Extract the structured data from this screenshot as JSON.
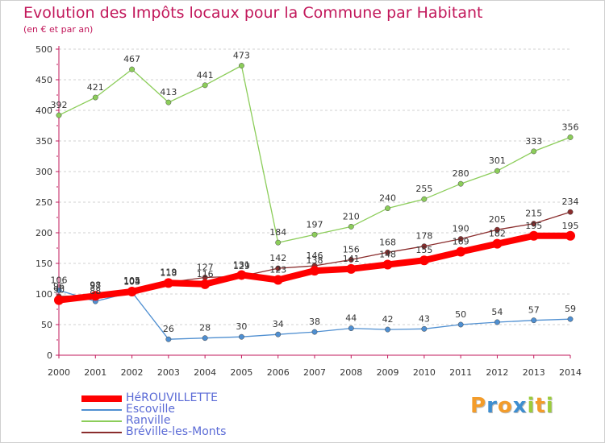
{
  "chart_data": {
    "type": "line",
    "title": "Evolution des Impôts locaux pour la Commune par Habitant",
    "subtitle": "(en € et par an)",
    "xlabel": "",
    "ylabel": "",
    "x": [
      2000,
      2001,
      2002,
      2003,
      2004,
      2005,
      2006,
      2007,
      2008,
      2009,
      2010,
      2011,
      2012,
      2013,
      2014
    ],
    "x_labels": [
      "2000",
      "2001",
      "2002",
      "2003",
      "2004",
      "2005",
      "2006",
      "2007",
      "2008",
      "2009",
      "2010",
      "2011",
      "2012",
      "2013",
      "2014"
    ],
    "ylim": [
      0,
      500
    ],
    "yticks": [
      0,
      50,
      100,
      150,
      200,
      250,
      300,
      350,
      400,
      450,
      500
    ],
    "ytick_labels": [
      "0",
      "50",
      "100",
      "150",
      "200",
      "250",
      "300",
      "350",
      "400",
      "450",
      "500"
    ],
    "grid": "horizontal dashed",
    "legend_position": "bottom-left",
    "series": [
      {
        "name": "HéROUVILLETTE",
        "color": "#ff0000",
        "values": [
          90,
          97,
          104,
          118,
          116,
          131,
          123,
          138,
          141,
          148,
          155,
          169,
          182,
          195,
          195
        ],
        "value_labels": [
          "90",
          "97",
          "104",
          "118",
          "116",
          "131",
          "123",
          "138",
          "141",
          "148",
          "155",
          "169",
          "182",
          "195",
          "195"
        ]
      },
      {
        "name": "Escoville",
        "color": "#4f8fd1",
        "values": [
          106,
          88,
          103,
          26,
          28,
          30,
          34,
          38,
          44,
          42,
          43,
          50,
          54,
          57,
          59
        ],
        "value_labels": [
          "106",
          "88",
          "103",
          "26",
          "28",
          "30",
          "34",
          "38",
          "44",
          "42",
          "43",
          "50",
          "54",
          "57",
          "59"
        ]
      },
      {
        "name": "Ranville",
        "color": "#8ccd5a",
        "values": [
          392,
          421,
          467,
          413,
          441,
          473,
          184,
          197,
          210,
          240,
          255,
          280,
          301,
          333,
          356
        ],
        "value_labels": [
          "392",
          "421",
          "467",
          "413",
          "441",
          "473",
          "184",
          "197",
          "210",
          "240",
          "255",
          "280",
          "301",
          "333",
          "356"
        ]
      },
      {
        "name": "Bréville-les-Monts",
        "color": "#8a2d2d",
        "values": [
          96,
          98,
          105,
          119,
          127,
          129,
          142,
          146,
          156,
          168,
          178,
          190,
          205,
          215,
          234
        ],
        "value_labels": [
          "96",
          "98",
          "105",
          "119",
          "127",
          "129",
          "142",
          "146",
          "156",
          "168",
          "178",
          "190",
          "205",
          "215",
          "234"
        ]
      }
    ]
  },
  "logo": {
    "text": "Proxiti",
    "letters": [
      "P",
      "r",
      "o",
      "x",
      "i",
      "t",
      "i"
    ],
    "colors": [
      "#f39c2a",
      "#3e8ed0",
      "#f39c2a",
      "#3e8ed0",
      "#9ccc3c",
      "#f39c2a",
      "#9ccc3c"
    ]
  }
}
